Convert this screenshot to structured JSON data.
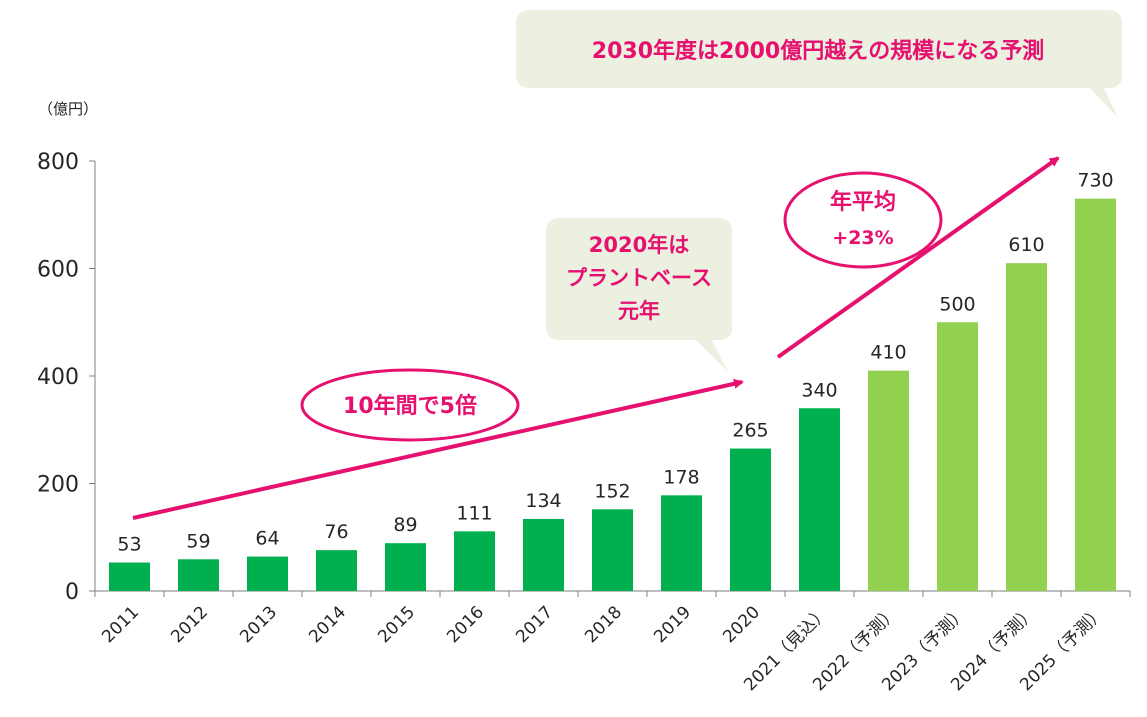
{
  "chart_data": {
    "type": "bar",
    "unit_label": "（億円）",
    "categories": [
      "2011",
      "2012",
      "2013",
      "2014",
      "2015",
      "2016",
      "2017",
      "2018",
      "2019",
      "2020",
      "2021（見込）",
      "2022（予測）",
      "2023（予測）",
      "2024（予測）",
      "2025（予測）"
    ],
    "values": [
      53,
      59,
      64,
      76,
      89,
      111,
      134,
      152,
      178,
      265,
      340,
      410,
      500,
      610,
      730
    ],
    "forecast_from_index": 11,
    "ylim": [
      0,
      800
    ],
    "yticks": [
      0,
      200,
      400,
      600,
      800
    ],
    "colors": {
      "actual": "#00b04f",
      "forecast": "#92d050",
      "accent": "#e6106e",
      "callout_bg": "#ebf0e0",
      "axis": "#7f7f7f"
    },
    "annotations": {
      "top_callout": "2030年度は2000億円越えの規模になる予測",
      "mid_callout": [
        "2020年は",
        "プラントベース",
        "元年"
      ],
      "growth_10y": "10年間で5倍",
      "cagr": [
        "年平均",
        "+23%"
      ]
    }
  }
}
